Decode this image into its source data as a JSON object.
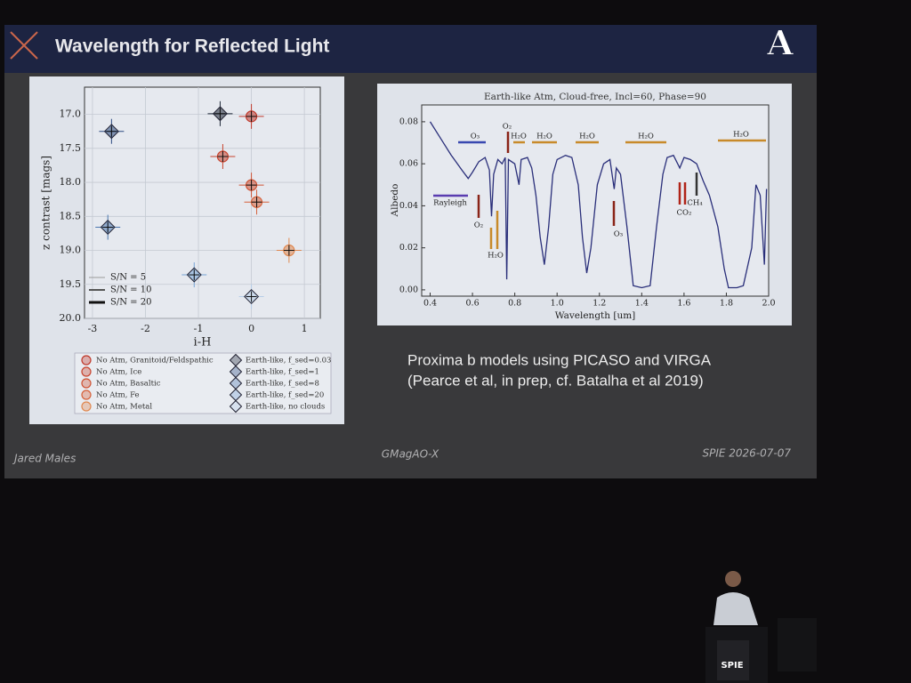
{
  "slide": {
    "title": "Wavelength for Reflected Light",
    "logo": "A",
    "caption": [
      "Proxima b models using PICASO and VIRGA",
      "(Pearce et al, in prep, cf. Batalha et al 2019)"
    ],
    "footer": [
      "Jared Males",
      "GMagAO-X",
      "SPIE 2026-07-07"
    ]
  },
  "podium": "SPIE",
  "chart_data": [
    {
      "type": "scatter",
      "xlabel": "i-H",
      "ylabel": "z contrast [mags]",
      "xlim": [
        -3.15,
        1.3
      ],
      "xticks": [
        -3,
        -2,
        -1,
        0,
        1
      ],
      "ylim": [
        20.0,
        16.6
      ],
      "yticks": [
        {
          "value": 17,
          "label": "17.0"
        },
        17.5,
        {
          "value": 18,
          "label": "18.0"
        },
        18.5,
        {
          "value": 19,
          "label": "19.0"
        },
        19.5,
        {
          "value": 20,
          "label": "20.0"
        }
      ],
      "grid": true,
      "sn_legend": {
        "labels": [
          "S/N = 5",
          "S/N = 10",
          "S/N = 20"
        ],
        "colors": [
          "#9a9a9a",
          "#555555",
          "#111111"
        ]
      },
      "series": [
        {
          "name": "No Atm, Granitoid/Feldspathic",
          "marker": "circle",
          "color": "#c0392b",
          "x": [
            0
          ],
          "values": [
            17.03
          ]
        },
        {
          "name": "No Atm, Ice",
          "marker": "circle",
          "color": "#c8442e",
          "x": [
            -0.54
          ],
          "values": [
            17.62
          ]
        },
        {
          "name": "No Atm, Basaltic",
          "marker": "circle",
          "color": "#cf5233",
          "x": [
            0
          ],
          "values": [
            18.04
          ]
        },
        {
          "name": "No Atm, Fe",
          "marker": "circle",
          "color": "#d6613a",
          "x": [
            0.1
          ],
          "values": [
            18.29
          ]
        },
        {
          "name": "No Atm, Metal",
          "marker": "circle",
          "color": "#e08850",
          "x": [
            0.71
          ],
          "values": [
            19.0
          ]
        },
        {
          "name": "Earth-like, f_sed=0.03",
          "marker": "diamond",
          "color": "#1f2838",
          "x": [
            -0.59
          ],
          "values": [
            16.99
          ]
        },
        {
          "name": "Earth-like, f_sed=1",
          "marker": "diamond",
          "color": "#2c4a80",
          "x": [
            -2.64
          ],
          "values": [
            17.25
          ]
        },
        {
          "name": "Earth-like, f_sed=8",
          "marker": "diamond",
          "color": "#4a76ae",
          "x": [
            -2.71
          ],
          "values": [
            18.66
          ]
        },
        {
          "name": "Earth-like, f_sed=20",
          "marker": "diamond",
          "color": "#77a4d6",
          "x": [
            -1.08
          ],
          "values": [
            19.36
          ]
        },
        {
          "name": "Earth-like, no clouds",
          "marker": "diamond",
          "color": "#b6cde8",
          "x": [
            0
          ],
          "values": [
            19.68
          ]
        }
      ]
    },
    {
      "type": "line",
      "title": "Earth-like Atm, Cloud-free, Incl=60, Phase=90",
      "xlabel": "Wavelength [um]",
      "ylabel": "Albedo",
      "xlim": [
        0.36,
        2.0
      ],
      "xticks": [
        0.4,
        0.6,
        0.8,
        {
          "value": 1,
          "label": "1.0"
        },
        1.2,
        1.4,
        1.6,
        1.8,
        {
          "value": 2,
          "label": "2.0"
        }
      ],
      "ylim": [
        -0.003,
        0.088
      ],
      "yticks": [
        {
          "value": 0,
          "label": "0.00"
        },
        0.02,
        0.04,
        0.06,
        0.08
      ],
      "color": "#2a2f7a",
      "x": [
        0.4,
        0.45,
        0.5,
        0.55,
        0.58,
        0.6,
        0.63,
        0.66,
        0.68,
        0.69,
        0.7,
        0.72,
        0.74,
        0.755,
        0.762,
        0.77,
        0.8,
        0.82,
        0.83,
        0.86,
        0.88,
        0.9,
        0.92,
        0.94,
        0.96,
        0.98,
        1.0,
        1.04,
        1.07,
        1.1,
        1.12,
        1.14,
        1.16,
        1.19,
        1.22,
        1.25,
        1.26,
        1.27,
        1.28,
        1.3,
        1.33,
        1.36,
        1.4,
        1.44,
        1.47,
        1.5,
        1.52,
        1.55,
        1.58,
        1.6,
        1.63,
        1.66,
        1.69,
        1.72,
        1.76,
        1.79,
        1.81,
        1.85,
        1.88,
        1.92,
        1.94,
        1.96,
        1.98,
        1.99
      ],
      "values": [
        0.08,
        0.072,
        0.064,
        0.057,
        0.053,
        0.056,
        0.061,
        0.063,
        0.057,
        0.035,
        0.055,
        0.062,
        0.06,
        0.063,
        0.005,
        0.062,
        0.06,
        0.05,
        0.062,
        0.063,
        0.058,
        0.045,
        0.025,
        0.012,
        0.03,
        0.055,
        0.062,
        0.064,
        0.063,
        0.05,
        0.025,
        0.008,
        0.02,
        0.05,
        0.06,
        0.062,
        0.055,
        0.048,
        0.058,
        0.055,
        0.03,
        0.002,
        0.001,
        0.002,
        0.03,
        0.055,
        0.063,
        0.064,
        0.058,
        0.063,
        0.062,
        0.06,
        0.052,
        0.045,
        0.03,
        0.01,
        0.001,
        0.001,
        0.002,
        0.02,
        0.05,
        0.045,
        0.012,
        0.048
      ],
      "annotations": [
        "O₃",
        "O₂",
        "H₂O",
        "H₂O",
        "H₂O",
        "H₂O",
        "H₂O",
        "Rayleigh",
        "O₂",
        "H₂O",
        "O₃",
        "CO₂",
        "CH₄"
      ]
    }
  ]
}
